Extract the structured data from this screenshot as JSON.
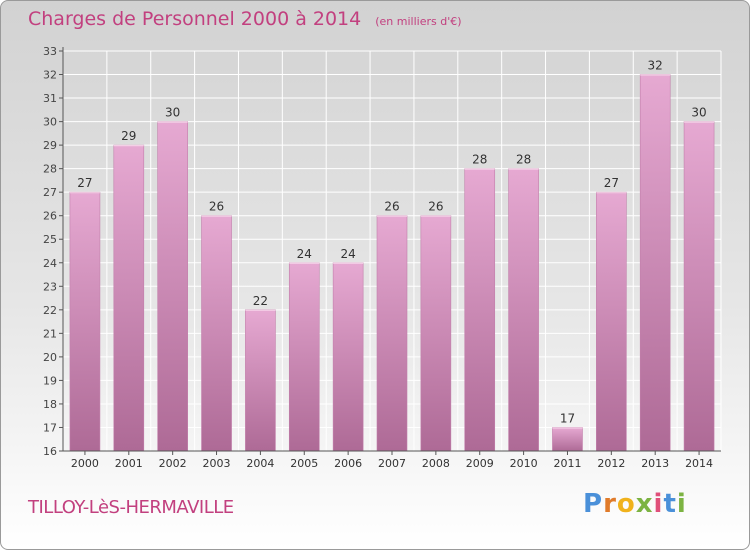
{
  "title": "Charges de Personnel 2000 à 2014",
  "subtitle": "(en milliers d'€)",
  "commune": "TILLOY-LèS-HERMAVILLE",
  "logo": "Proxiti",
  "colors": {
    "title": "#c2407f",
    "bar_top": "#e3a6cf",
    "bar_bottom": "#b06c98"
  },
  "chart_data": {
    "type": "bar",
    "title": "Charges de Personnel 2000 à 2014",
    "subtitle": "(en milliers d'€)",
    "categories": [
      "2000",
      "2001",
      "2002",
      "2003",
      "2004",
      "2005",
      "2006",
      "2007",
      "2008",
      "2009",
      "2010",
      "2011",
      "2012",
      "2013",
      "2014"
    ],
    "values": [
      27,
      29,
      30,
      26,
      22,
      24,
      24,
      26,
      26,
      28,
      28,
      17,
      27,
      32,
      30
    ],
    "ylim": [
      16,
      33
    ],
    "yticks": [
      16,
      17,
      18,
      19,
      20,
      21,
      22,
      23,
      24,
      25,
      26,
      27,
      28,
      29,
      30,
      31,
      32,
      33
    ],
    "grid": true
  }
}
